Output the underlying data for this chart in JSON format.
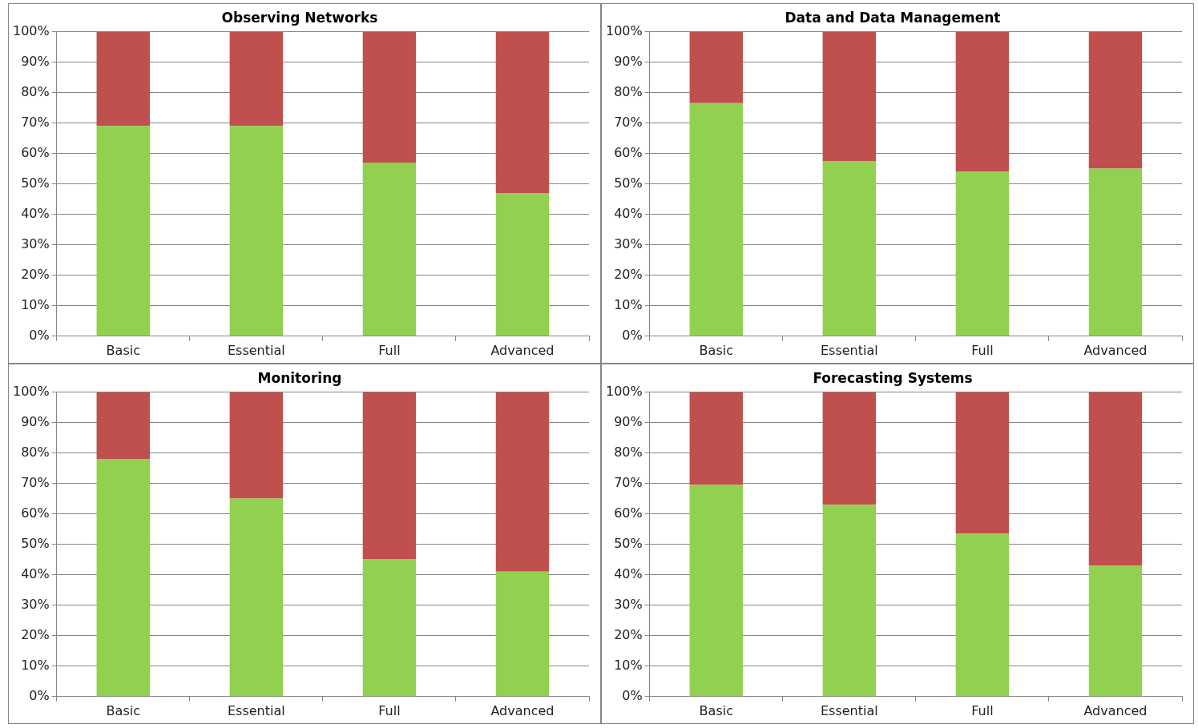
{
  "chart_data": [
    {
      "type": "bar",
      "title": "Observing Networks",
      "categories": [
        "Basic",
        "Essential",
        "Full",
        "Advanced"
      ],
      "stacked": true,
      "grid": "y",
      "ylim": [
        0,
        100
      ],
      "yticks": [
        {
          "value": 0,
          "label": "0%"
        },
        {
          "value": 10,
          "label": "10%"
        },
        {
          "value": 20,
          "label": "20%"
        },
        {
          "value": 30,
          "label": "30%"
        },
        {
          "value": 40,
          "label": "40%"
        },
        {
          "value": 50,
          "label": "50%"
        },
        {
          "value": 60,
          "label": "60%"
        },
        {
          "value": 70,
          "label": "70%"
        },
        {
          "value": 80,
          "label": "80%"
        },
        {
          "value": 90,
          "label": "90%"
        },
        {
          "value": 100,
          "label": "100%"
        }
      ],
      "series": [
        {
          "color": "#92d050",
          "values": [
            69,
            69,
            57,
            47
          ]
        },
        {
          "color": "#c0504d",
          "values": [
            31,
            31,
            43,
            53
          ]
        }
      ]
    },
    {
      "type": "bar",
      "title": "Data and Data Management",
      "categories": [
        "Basic",
        "Essential",
        "Full",
        "Advanced"
      ],
      "stacked": true,
      "grid": "y",
      "ylim": [
        0,
        100
      ],
      "yticks": [
        {
          "value": 0,
          "label": "0%"
        },
        {
          "value": 10,
          "label": "10%"
        },
        {
          "value": 20,
          "label": "20%"
        },
        {
          "value": 30,
          "label": "30%"
        },
        {
          "value": 40,
          "label": "40%"
        },
        {
          "value": 50,
          "label": "50%"
        },
        {
          "value": 60,
          "label": "60%"
        },
        {
          "value": 70,
          "label": "70%"
        },
        {
          "value": 80,
          "label": "80%"
        },
        {
          "value": 90,
          "label": "90%"
        },
        {
          "value": 100,
          "label": "100%"
        }
      ],
      "series": [
        {
          "color": "#92d050",
          "values": [
            76.5,
            57.5,
            54,
            55
          ]
        },
        {
          "color": "#c0504d",
          "values": [
            23.5,
            42.5,
            46,
            45
          ]
        }
      ]
    },
    {
      "type": "bar",
      "title": "Monitoring",
      "categories": [
        "Basic",
        "Essential",
        "Full",
        "Advanced"
      ],
      "stacked": true,
      "grid": "y",
      "ylim": [
        0,
        100
      ],
      "yticks": [
        {
          "value": 0,
          "label": "0%"
        },
        {
          "value": 10,
          "label": "10%"
        },
        {
          "value": 20,
          "label": "20%"
        },
        {
          "value": 30,
          "label": "30%"
        },
        {
          "value": 40,
          "label": "40%"
        },
        {
          "value": 50,
          "label": "50%"
        },
        {
          "value": 60,
          "label": "60%"
        },
        {
          "value": 70,
          "label": "70%"
        },
        {
          "value": 80,
          "label": "80%"
        },
        {
          "value": 90,
          "label": "90%"
        },
        {
          "value": 100,
          "label": "100%"
        }
      ],
      "series": [
        {
          "color": "#92d050",
          "values": [
            78,
            65,
            45,
            41
          ]
        },
        {
          "color": "#c0504d",
          "values": [
            22,
            35,
            55,
            59
          ]
        }
      ]
    },
    {
      "type": "bar",
      "title": "Forecasting Systems",
      "categories": [
        "Basic",
        "Essential",
        "Full",
        "Advanced"
      ],
      "stacked": true,
      "grid": "y",
      "ylim": [
        0,
        100
      ],
      "yticks": [
        {
          "value": 0,
          "label": "0%"
        },
        {
          "value": 10,
          "label": "10%"
        },
        {
          "value": 20,
          "label": "20%"
        },
        {
          "value": 30,
          "label": "30%"
        },
        {
          "value": 40,
          "label": "40%"
        },
        {
          "value": 50,
          "label": "50%"
        },
        {
          "value": 60,
          "label": "60%"
        },
        {
          "value": 70,
          "label": "70%"
        },
        {
          "value": 80,
          "label": "80%"
        },
        {
          "value": 90,
          "label": "90%"
        },
        {
          "value": 100,
          "label": "100%"
        }
      ],
      "series": [
        {
          "color": "#92d050",
          "values": [
            69.5,
            63,
            53.5,
            43
          ]
        },
        {
          "color": "#c0504d",
          "values": [
            30.5,
            37,
            46.5,
            57
          ]
        }
      ]
    }
  ]
}
